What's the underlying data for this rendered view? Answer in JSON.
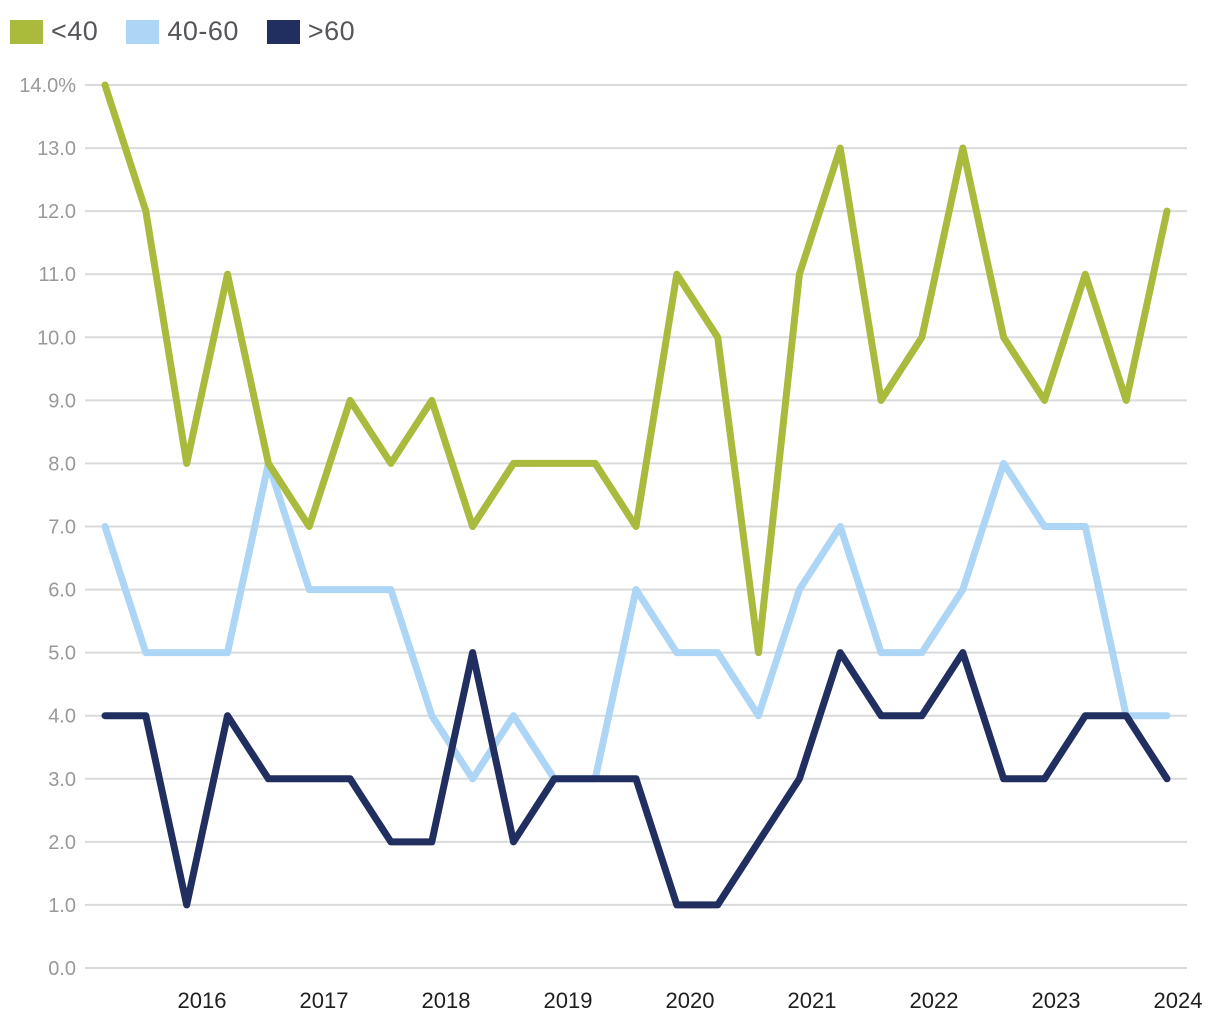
{
  "legend": {
    "items": [
      {
        "label": "<40",
        "color": "#a9ba3d"
      },
      {
        "label": "40-60",
        "color": "#add5f6"
      },
      {
        "label": ">60",
        "color": "#202e60"
      }
    ]
  },
  "chart_data": {
    "type": "line",
    "title": "",
    "xlabel": "",
    "ylabel": "",
    "ylim": [
      0,
      14
    ],
    "y_tick_step": 1.0,
    "y_tick_labels": [
      "14.0%",
      "13.0",
      "12.0",
      "11.0",
      "10.0",
      "9.0",
      "8.0",
      "7.0",
      "6.0",
      "5.0",
      "4.0",
      "3.0",
      "2.0",
      "1.0",
      "0.0"
    ],
    "x_year_labels": [
      "2016",
      "2017",
      "2018",
      "2019",
      "2020",
      "2021",
      "2022",
      "2023",
      "2024"
    ],
    "points_per_year": 3,
    "x_start_year_fraction": "2015.4",
    "grid": "horizontal",
    "legend_position": "top-left",
    "series": [
      {
        "name": "<40",
        "color": "#a9ba3d",
        "values": [
          14,
          12,
          8,
          11,
          8,
          7,
          9,
          8,
          9,
          7,
          8,
          8,
          8,
          7,
          11,
          10,
          5,
          11,
          13,
          9,
          10,
          13,
          10,
          9,
          11,
          9,
          12
        ]
      },
      {
        "name": "40-60",
        "color": "#add5f6",
        "values": [
          7,
          5,
          5,
          5,
          8,
          6,
          6,
          6,
          4,
          3,
          4,
          3,
          3,
          6,
          5,
          5,
          4,
          6,
          7,
          5,
          5,
          6,
          8,
          7,
          7,
          4,
          4
        ]
      },
      {
        "name": ">60",
        "color": "#202e60",
        "values": [
          4,
          4,
          1,
          4,
          3,
          3,
          3,
          2,
          2,
          5,
          2,
          3,
          3,
          3,
          1,
          1,
          2,
          3,
          5,
          4,
          4,
          5,
          3,
          3,
          4,
          4,
          3
        ]
      }
    ],
    "z_order": [
      1,
      0,
      2
    ]
  }
}
